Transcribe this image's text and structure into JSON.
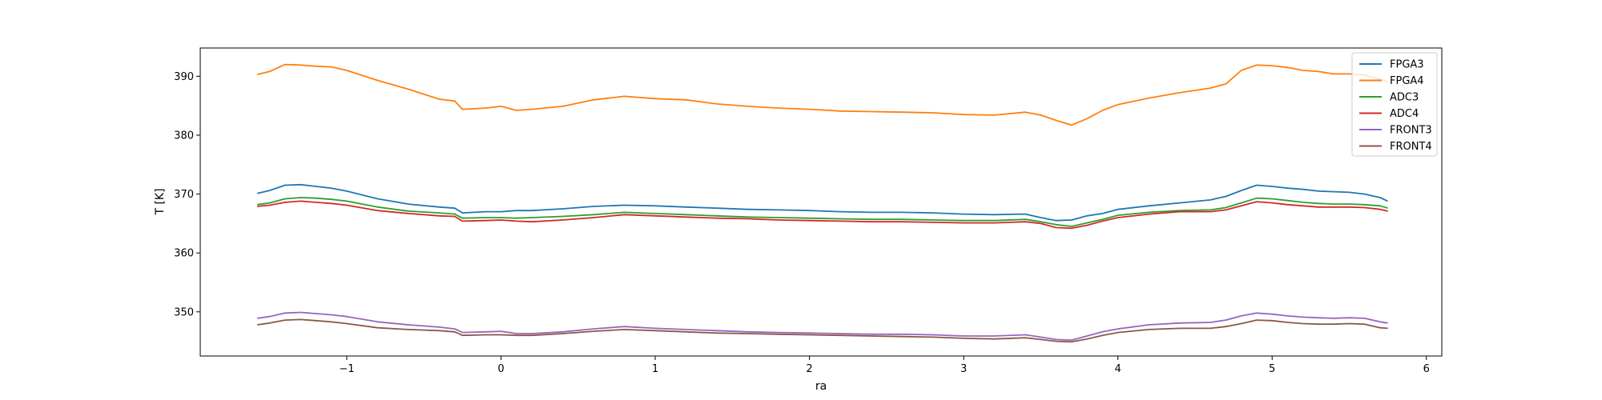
{
  "chart_data": {
    "type": "line",
    "title": "",
    "xlabel": "ra",
    "ylabel": "T [K]",
    "xlim": [
      -1.95,
      6.1
    ],
    "ylim": [
      342.5,
      394.8
    ],
    "xticks": [
      -1,
      0,
      1,
      2,
      3,
      4,
      5,
      6
    ],
    "xtick_labels": [
      "−1",
      "0",
      "1",
      "2",
      "3",
      "4",
      "5",
      "6"
    ],
    "yticks": [
      350,
      360,
      370,
      380,
      390
    ],
    "ytick_labels": [
      "350",
      "360",
      "370",
      "380",
      "390"
    ],
    "grid": false,
    "legend_position": "top-right",
    "x": [
      -1.58,
      -1.5,
      -1.4,
      -1.3,
      -1.2,
      -1.1,
      -1.0,
      -0.8,
      -0.6,
      -0.4,
      -0.3,
      -0.25,
      -0.1,
      0.0,
      0.1,
      0.2,
      0.4,
      0.6,
      0.8,
      1.0,
      1.2,
      1.4,
      1.6,
      1.8,
      2.0,
      2.2,
      2.4,
      2.6,
      2.8,
      3.0,
      3.2,
      3.4,
      3.5,
      3.6,
      3.7,
      3.8,
      3.9,
      4.0,
      4.2,
      4.4,
      4.6,
      4.7,
      4.8,
      4.9,
      5.0,
      5.1,
      5.2,
      5.3,
      5.4,
      5.5,
      5.6,
      5.7,
      5.75
    ],
    "series": [
      {
        "name": "FPGA3",
        "color": "#1f77b4",
        "values": [
          370.1,
          370.6,
          371.5,
          371.6,
          371.3,
          371.0,
          370.5,
          369.2,
          368.3,
          367.8,
          367.6,
          366.8,
          367.0,
          367.0,
          367.2,
          367.2,
          367.5,
          367.9,
          368.1,
          368.0,
          367.8,
          367.6,
          367.4,
          367.3,
          367.2,
          367.0,
          366.9,
          366.9,
          366.8,
          366.6,
          366.5,
          366.6,
          366.0,
          365.5,
          365.6,
          366.3,
          366.7,
          367.4,
          368.0,
          368.5,
          369.0,
          369.6,
          370.6,
          371.5,
          371.3,
          371.0,
          370.8,
          370.5,
          370.4,
          370.3,
          370.0,
          369.4,
          368.8
        ]
      },
      {
        "name": "FPGA4",
        "color": "#ff7f0e",
        "values": [
          390.3,
          390.8,
          392.0,
          391.9,
          391.7,
          391.6,
          391.0,
          389.3,
          387.8,
          386.1,
          385.8,
          384.4,
          384.6,
          384.9,
          384.2,
          384.4,
          384.9,
          386.0,
          386.6,
          386.2,
          386.0,
          385.3,
          384.9,
          384.6,
          384.4,
          384.1,
          384.0,
          383.9,
          383.8,
          383.5,
          383.4,
          383.9,
          383.4,
          382.5,
          381.7,
          382.8,
          384.2,
          385.2,
          386.3,
          387.2,
          388.0,
          388.7,
          391.0,
          391.9,
          391.8,
          391.5,
          391.0,
          390.8,
          390.4,
          390.4,
          390.2,
          389.5,
          389.0
        ]
      },
      {
        "name": "ADC3",
        "color": "#2ca02c",
        "values": [
          368.2,
          368.5,
          369.2,
          369.4,
          369.3,
          369.1,
          368.8,
          367.8,
          367.1,
          366.8,
          366.6,
          365.9,
          366.0,
          366.0,
          365.9,
          366.0,
          366.2,
          366.5,
          366.9,
          366.7,
          366.5,
          366.3,
          366.1,
          366.0,
          365.9,
          365.8,
          365.7,
          365.7,
          365.6,
          365.5,
          365.5,
          365.7,
          365.3,
          364.8,
          364.5,
          365.1,
          365.7,
          366.4,
          366.9,
          367.2,
          367.3,
          367.7,
          368.5,
          369.3,
          369.2,
          368.9,
          368.6,
          368.4,
          368.3,
          368.3,
          368.2,
          368.0,
          367.6
        ]
      },
      {
        "name": "ADC4",
        "color": "#d62728",
        "values": [
          367.9,
          368.1,
          368.6,
          368.8,
          368.6,
          368.4,
          368.1,
          367.2,
          366.7,
          366.3,
          366.2,
          365.4,
          365.5,
          365.6,
          365.4,
          365.3,
          365.6,
          366.0,
          366.5,
          366.3,
          366.1,
          365.9,
          365.8,
          365.6,
          365.5,
          365.4,
          365.3,
          365.3,
          365.2,
          365.1,
          365.1,
          365.3,
          365.0,
          364.3,
          364.2,
          364.7,
          365.4,
          366.0,
          366.6,
          367.0,
          367.0,
          367.3,
          368.0,
          368.7,
          368.5,
          368.2,
          368.0,
          367.8,
          367.8,
          367.8,
          367.7,
          367.4,
          367.1
        ]
      },
      {
        "name": "FRONT3",
        "color": "#9467bd",
        "values": [
          348.9,
          349.2,
          349.8,
          349.9,
          349.7,
          349.5,
          349.2,
          348.3,
          347.8,
          347.4,
          347.1,
          346.5,
          346.6,
          346.7,
          346.3,
          346.3,
          346.6,
          347.1,
          347.5,
          347.2,
          347.0,
          346.8,
          346.6,
          346.5,
          346.4,
          346.3,
          346.2,
          346.2,
          346.1,
          345.9,
          345.9,
          346.1,
          345.7,
          345.3,
          345.2,
          345.9,
          346.6,
          347.1,
          347.8,
          348.1,
          348.2,
          348.6,
          349.3,
          349.8,
          349.6,
          349.3,
          349.1,
          349.0,
          348.9,
          349.0,
          348.9,
          348.3,
          348.1
        ]
      },
      {
        "name": "FRONT4",
        "color": "#8c564b",
        "values": [
          347.8,
          348.1,
          348.6,
          348.7,
          348.5,
          348.3,
          348.0,
          347.3,
          347.0,
          346.8,
          346.6,
          346.0,
          346.1,
          346.1,
          346.0,
          346.0,
          346.3,
          346.7,
          347.0,
          346.8,
          346.6,
          346.4,
          346.3,
          346.2,
          346.1,
          346.0,
          345.9,
          345.8,
          345.7,
          345.5,
          345.4,
          345.6,
          345.3,
          345.0,
          344.9,
          345.4,
          346.0,
          346.5,
          347.0,
          347.2,
          347.2,
          347.5,
          348.0,
          348.6,
          348.5,
          348.2,
          348.0,
          347.9,
          347.9,
          348.0,
          347.9,
          347.3,
          347.2
        ]
      }
    ]
  }
}
